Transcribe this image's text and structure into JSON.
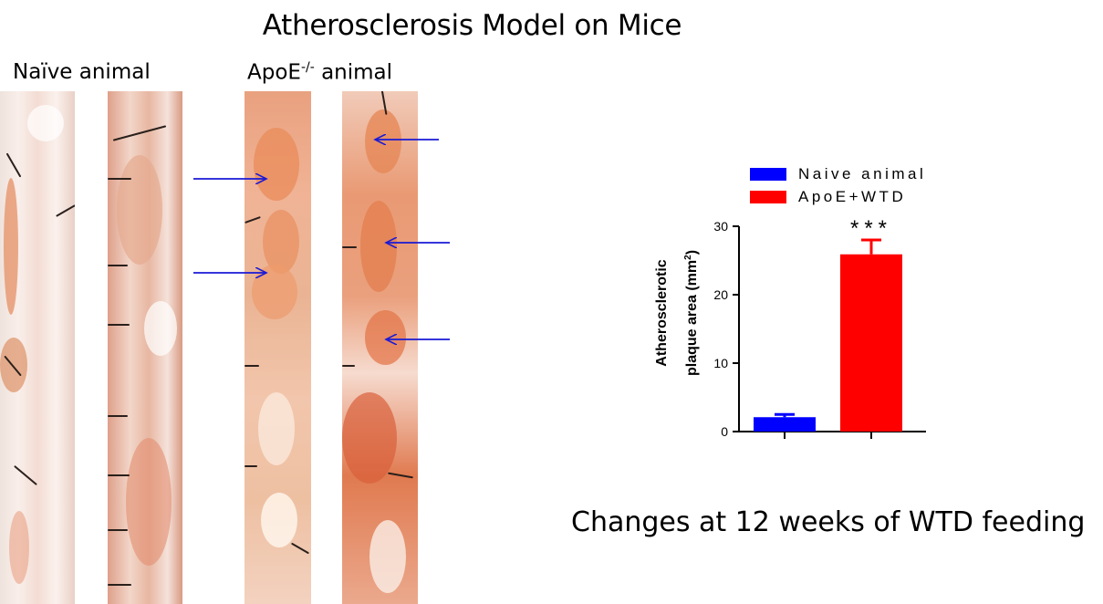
{
  "page": {
    "title": "Atherosclerosis Model on Mice",
    "naive_label": "Naïve animal",
    "apoe_label_prefix": "ApoE",
    "apoe_label_sup": "-/-",
    "apoe_label_suffix": " animal",
    "footer": "Changes at 12 weeks of WTD feeding"
  },
  "colors": {
    "naive_bar": "#0000ff",
    "apoe_bar": "#ff0000",
    "arrows": "#1a1ad6",
    "axis": "#000000"
  },
  "chart_data": {
    "type": "bar",
    "categories": [
      "Naive animal",
      "ApoE+WTD"
    ],
    "values": [
      2.1,
      25.9
    ],
    "error_upper": [
      0.4,
      2.1
    ],
    "series": [
      {
        "name": "Naive animal",
        "values": [
          2.1,
          null
        ]
      },
      {
        "name": "ApoE+WTD",
        "values": [
          null,
          25.9
        ]
      }
    ],
    "annotations": [
      "",
      "***"
    ],
    "ylabel_line1": "Atherosclerotic",
    "ylabel_line2_prefix": "plaque area (mm",
    "ylabel_line2_sup": "2",
    "ylabel_line2_suffix": ")",
    "ylim": [
      0,
      30
    ],
    "yticks": [
      "0",
      "10",
      "20",
      "30"
    ],
    "legend_position": "top",
    "grid": false
  }
}
